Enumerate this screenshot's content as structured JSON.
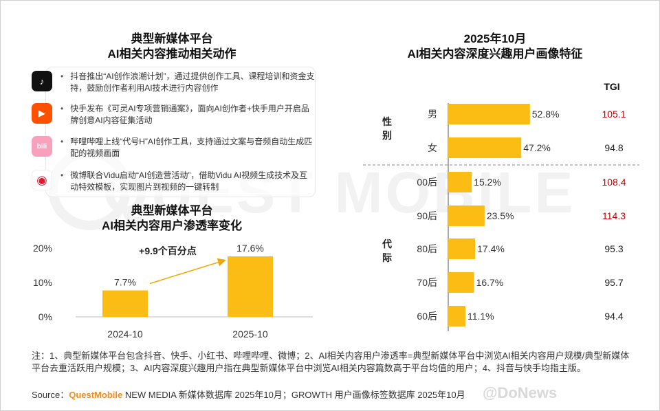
{
  "left_top": {
    "title_line1": "典型新媒体平台",
    "title_line2": "AI相关内容推动相关动作",
    "actions": [
      {
        "icon": "douyin-icon",
        "icon_glyph": "♪",
        "color": "#111111",
        "text": "抖音推出“AI创作浪潮计划”，通过提供创作工具、课程培训和资金支持，鼓励创作者利用AI技术进行内容创作"
      },
      {
        "icon": "kuaishou-icon",
        "icon_glyph": "▶",
        "color": "#ff5000",
        "text": "快手发布《可灵AI专项营销通案》，面向AI创作者+快手用户开启品牌创意AI内容征集活动"
      },
      {
        "icon": "bilibili-icon",
        "icon_glyph": "bili",
        "color": "#f7a1bd",
        "text": "哔哩哔哩上线“代号H”AI创作工具，支持通过文案与音频自动生成匹配的视频画面"
      },
      {
        "icon": "weibo-icon",
        "icon_glyph": "◉",
        "color": "#f5c518",
        "text": "微博联合Vidu启动“AI创造营活动”，借助Vidu AI视频生成技术及互动特效模板，实现图片到视频的一键转制"
      }
    ]
  },
  "watermark": "QUEST MOBILE",
  "chart_data": [
    {
      "type": "bar",
      "title": "典型新媒体平台 AI相关内容用户渗透率变化",
      "title_line1": "典型新媒体平台",
      "title_line2": "AI相关内容用户渗透率变化",
      "categories": [
        "2024-10",
        "2025-10"
      ],
      "values": [
        7.7,
        17.6
      ],
      "value_labels": [
        "7.7%",
        "17.6%"
      ],
      "y_ticks": [
        "0%",
        "10%",
        "20%"
      ],
      "ylim": [
        0,
        20
      ],
      "annotation": "+9.9个百分点"
    },
    {
      "type": "bar",
      "orientation": "horizontal",
      "title": "2025年10月 AI相关内容深度兴趣用户画像特征",
      "title_line1": "2025年10月",
      "title_line2": "AI相关内容深度兴趣用户画像特征",
      "tgi_header": "TGI",
      "groups": [
        {
          "name": "性别",
          "chars": [
            "性",
            "别"
          ]
        },
        {
          "name": "代际",
          "chars": [
            "代",
            "际"
          ]
        }
      ],
      "rows": [
        {
          "group": "性别",
          "label": "男",
          "value": 52.8,
          "value_label": "52.8%",
          "tgi": "105.1",
          "tgi_high": true
        },
        {
          "group": "性别",
          "label": "女",
          "value": 47.2,
          "value_label": "47.2%",
          "tgi": "94.8",
          "tgi_high": false
        },
        {
          "group": "代际",
          "label": "00后",
          "value": 15.2,
          "value_label": "15.2%",
          "tgi": "108.4",
          "tgi_high": true
        },
        {
          "group": "代际",
          "label": "90后",
          "value": 23.5,
          "value_label": "23.5%",
          "tgi": "114.3",
          "tgi_high": true
        },
        {
          "group": "代际",
          "label": "80后",
          "value": 17.4,
          "value_label": "17.4%",
          "tgi": "95.3",
          "tgi_high": false
        },
        {
          "group": "代际",
          "label": "70后",
          "value": 16.7,
          "value_label": "16.7%",
          "tgi": "95.7",
          "tgi_high": false
        },
        {
          "group": "代际",
          "label": "60后",
          "value": 11.1,
          "value_label": "11.1%",
          "tgi": "94.4",
          "tgi_high": false
        }
      ]
    }
  ],
  "colors": {
    "bar": "#fbbd14",
    "tgi_high": "#c00000",
    "tgi_normal": "#222222",
    "arrow": "#f0a800"
  },
  "footer": {
    "note": "注：1、典型新媒体平台包含抖音、快手、小红书、哔哩哔哩、微博；2、AI相关内容用户渗透率=典型新媒体平台中浏览AI相关内容用户规模/典型新媒体平台去重活跃用户规模；3、AI内容深度兴趣用户指在典型新媒体平台中浏览AI相关内容篇数高于平台均值的用户；4、抖音与快手均指主版。",
    "source_prefix": "Source：",
    "source_brand": "QuestMobile",
    "source_rest": " NEW MEDIA 新媒体数据库 2025年10月；GROWTH 用户画像标签数据库 2025年10月"
  },
  "donews": "@DoNews"
}
